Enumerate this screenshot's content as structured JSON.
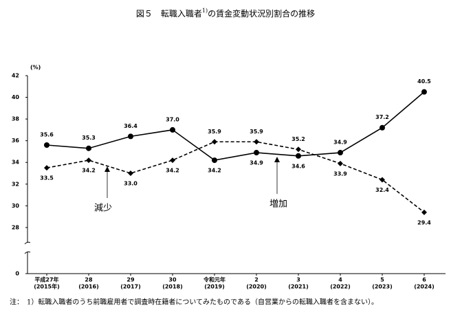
{
  "chart_data": {
    "type": "line",
    "title": [
      "図５　転職入職者",
      "1)",
      "の賃金変動状況別割合の推移"
    ],
    "y_unit": "(%)",
    "categories": [
      [
        "平成27年",
        "(2015年)"
      ],
      [
        "28",
        "(2016)"
      ],
      [
        "29",
        "(2017)"
      ],
      [
        "30",
        "(2018)"
      ],
      [
        "令和元年",
        "(2019)"
      ],
      [
        "2",
        "(2020)"
      ],
      [
        "3",
        "(2021)"
      ],
      [
        "4",
        "(2022)"
      ],
      [
        "5",
        "(2023)"
      ],
      [
        "6",
        "(2024)"
      ]
    ],
    "series": [
      {
        "name": "増加",
        "color": "#000000",
        "dash": false,
        "marker": "circle",
        "values": [
          35.6,
          35.3,
          36.4,
          37.0,
          34.2,
          34.9,
          34.6,
          34.9,
          37.2,
          40.5
        ],
        "value_labels": [
          "35.6",
          "35.3",
          "36.4",
          "37.0",
          "34.2",
          "34.9",
          "34.6",
          "34.9",
          "37.2",
          "40.5"
        ]
      },
      {
        "name": "減少",
        "color": "#000000",
        "dash": true,
        "marker": "diamond",
        "values": [
          33.5,
          34.2,
          33.0,
          34.2,
          35.9,
          35.9,
          35.2,
          33.9,
          32.4,
          29.4
        ],
        "value_labels": [
          "33.5",
          "34.2",
          "33.0",
          "34.2",
          "35.9",
          "35.9",
          "35.2",
          "33.9",
          "32.4",
          "29.4"
        ]
      }
    ],
    "ylim": [
      0,
      42
    ],
    "yticks": [
      0,
      28,
      30,
      32,
      34,
      36,
      38,
      40,
      42
    ],
    "axis_break": true,
    "note": "注：　1）転職入職者のうち前職雇用者で調査時在籍者についてみたものである（自営業からの転職入職者を含まない）。"
  }
}
